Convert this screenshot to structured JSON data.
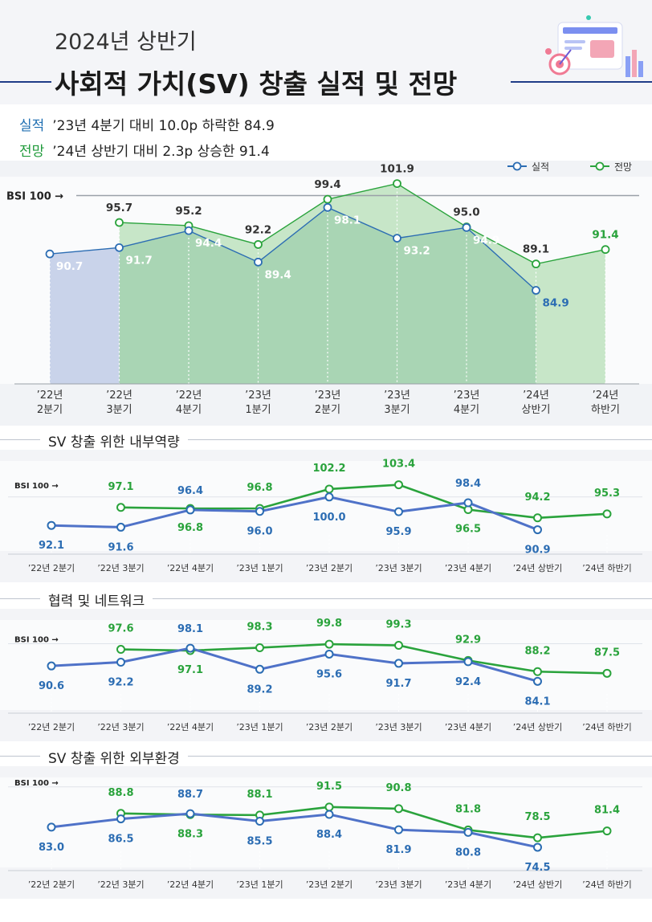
{
  "header": {
    "year_title": "2024년 상반기",
    "main_title": "사회적 가치(SV) 창출 실적 및 전망",
    "summary": [
      {
        "key": "실적",
        "text": "’23년 4분기 대비 10.0p 하락한 84.9"
      },
      {
        "key": "전망",
        "text": "’24년 상반기 대비 2.3p 상승한 91.4"
      }
    ]
  },
  "colors": {
    "actual": "#2c6db3",
    "forecast": "#2aa33c",
    "actual_fill": "#c9d3ea",
    "forecast_fill": "#9fcfae"
  },
  "chart_data": [
    {
      "type": "area",
      "legend": [
        "실적",
        "전망"
      ],
      "legend_position": "top-right",
      "reference_label": "BSI 100 →",
      "reference_value": 100,
      "categories": [
        [
          "’22년",
          "2분기"
        ],
        [
          "’22년",
          "3분기"
        ],
        [
          "’22년",
          "4분기"
        ],
        [
          "’23년",
          "1분기"
        ],
        [
          "’23년",
          "2분기"
        ],
        [
          "’23년",
          "3분기"
        ],
        [
          "’23년",
          "4분기"
        ],
        [
          "’24년",
          "상반기"
        ],
        [
          "’24년",
          "하반기"
        ]
      ],
      "series": [
        {
          "name": "실적",
          "values": [
            90.7,
            91.7,
            94.4,
            89.4,
            98.1,
            93.2,
            94.9,
            84.9,
            null
          ],
          "labels": [
            "90.7",
            "91.7",
            "94.4",
            "89.4",
            "98.1",
            "93.2",
            "94.9",
            "84.9",
            ""
          ]
        },
        {
          "name": "전망",
          "values": [
            null,
            95.7,
            95.2,
            92.2,
            99.4,
            101.9,
            95.0,
            89.1,
            91.4
          ],
          "labels": [
            "",
            "95.7",
            "95.2",
            "92.2",
            "99.4",
            "101.9",
            "95.0",
            "89.1",
            "91.4"
          ]
        }
      ],
      "ylim": [
        70,
        103
      ]
    },
    {
      "type": "line",
      "title": "SV 창출 위한 내부역량",
      "reference_label": "BSI 100 →",
      "reference_value": 100,
      "categories": [
        "’22년 2분기",
        "’22년 3분기",
        "’22년 4분기",
        "’23년 1분기",
        "’23년 2분기",
        "’23년 3분기",
        "’23년 4분기",
        "’24년 상반기",
        "’24년 하반기"
      ],
      "series": [
        {
          "name": "실적",
          "values": [
            92.1,
            91.6,
            96.4,
            96.0,
            100.0,
            95.9,
            98.4,
            90.9,
            null
          ],
          "labels": [
            "92.1",
            "91.6",
            "96.4",
            "96.0",
            "100.0",
            "95.9",
            "98.4",
            "90.9",
            ""
          ]
        },
        {
          "name": "전망",
          "values": [
            null,
            97.1,
            96.8,
            96.8,
            102.2,
            103.4,
            96.5,
            94.2,
            95.3
          ],
          "labels": [
            "",
            "97.1",
            "96.8",
            "96.8",
            "102.2",
            "103.4",
            "96.5",
            "94.2",
            "95.3"
          ]
        }
      ],
      "ylim": [
        85,
        110
      ]
    },
    {
      "type": "line",
      "title": "협력 및 네트워크",
      "reference_label": "BSI 100 →",
      "reference_value": 100,
      "categories": [
        "’22년 2분기",
        "’22년 3분기",
        "’22년 4분기",
        "’23년 1분기",
        "’23년 2분기",
        "’23년 3분기",
        "’23년 4분기",
        "’24년 상반기",
        "’24년 하반기"
      ],
      "series": [
        {
          "name": "실적",
          "values": [
            90.6,
            92.2,
            98.1,
            89.2,
            95.6,
            91.7,
            92.4,
            84.1,
            null
          ],
          "labels": [
            "90.6",
            "92.2",
            "98.1",
            "89.2",
            "95.6",
            "91.7",
            "92.4",
            "84.1",
            ""
          ]
        },
        {
          "name": "전망",
          "values": [
            null,
            97.6,
            97.1,
            98.3,
            99.8,
            99.3,
            92.9,
            88.2,
            87.5
          ],
          "labels": [
            "",
            "97.6",
            "97.1",
            "98.3",
            "99.8",
            "99.3",
            "92.9",
            "88.2",
            "87.5"
          ]
        }
      ],
      "ylim": [
        72,
        110
      ]
    },
    {
      "type": "line",
      "title": "SV 창출 위한 외부환경",
      "reference_label": "BSI 100 →",
      "reference_value": 100,
      "categories": [
        "’22년 2분기",
        "’22년 3분기",
        "’22년 4분기",
        "’23년 1분기",
        "’23년 2분기",
        "’23년 3분기",
        "’23년 4분기",
        "’24년 상반기",
        "’24년 하반기"
      ],
      "series": [
        {
          "name": "실적",
          "values": [
            83.0,
            86.5,
            88.7,
            85.5,
            88.4,
            81.9,
            80.8,
            74.5,
            null
          ],
          "labels": [
            "83.0",
            "86.5",
            "88.7",
            "85.5",
            "88.4",
            "81.9",
            "80.8",
            "74.5",
            ""
          ]
        },
        {
          "name": "전망",
          "values": [
            null,
            88.8,
            88.3,
            88.1,
            91.5,
            90.8,
            81.8,
            78.5,
            81.4
          ],
          "labels": [
            "",
            "88.8",
            "88.3",
            "88.1",
            "91.5",
            "90.8",
            "81.8",
            "78.5",
            "81.4"
          ]
        }
      ],
      "ylim": [
        66,
        104
      ]
    }
  ]
}
